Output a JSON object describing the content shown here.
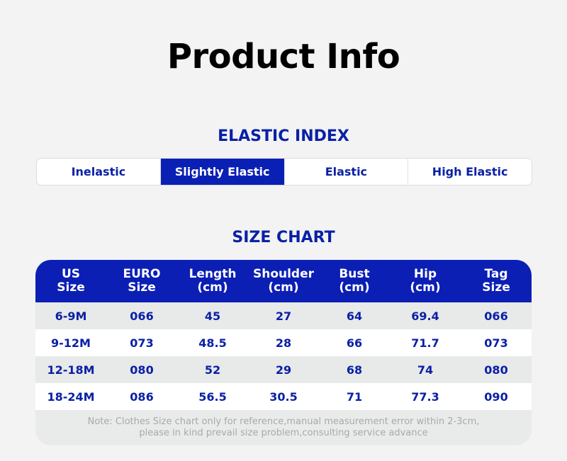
{
  "title": "Product Info",
  "elastic_index": {
    "heading": "ELASTIC INDEX",
    "options": [
      "Inelastic",
      "Slightly Elastic",
      "Elastic",
      "High Elastic"
    ],
    "selected": "Slightly Elastic"
  },
  "size_chart": {
    "heading": "SIZE CHART",
    "columns": [
      {
        "line1": "US",
        "line2": "Size"
      },
      {
        "line1": "EURO",
        "line2": "Size"
      },
      {
        "line1": "Length",
        "line2": "(cm)"
      },
      {
        "line1": "Shoulder",
        "line2": "(cm)"
      },
      {
        "line1": "Bust",
        "line2": "(cm)"
      },
      {
        "line1": "Hip",
        "line2": "(cm)"
      },
      {
        "line1": "Tag",
        "line2": "Size"
      }
    ],
    "rows": [
      [
        "6-9M",
        "066",
        "45",
        "27",
        "64",
        "69.4",
        "066"
      ],
      [
        "9-12M",
        "073",
        "48.5",
        "28",
        "66",
        "71.7",
        "073"
      ],
      [
        "12-18M",
        "080",
        "52",
        "29",
        "68",
        "74",
        "080"
      ],
      [
        "18-24M",
        "086",
        "56.5",
        "30.5",
        "71",
        "77.3",
        "090"
      ]
    ],
    "note_line1": "Note: Clothes Size chart only for reference,manual measurement error within 2-3cm,",
    "note_line2": "please in kind prevail size problem,consulting service advance"
  },
  "colors": {
    "accent": "#0a20b4",
    "text_blue": "#0a20a6",
    "background": "#f2f3f2"
  }
}
